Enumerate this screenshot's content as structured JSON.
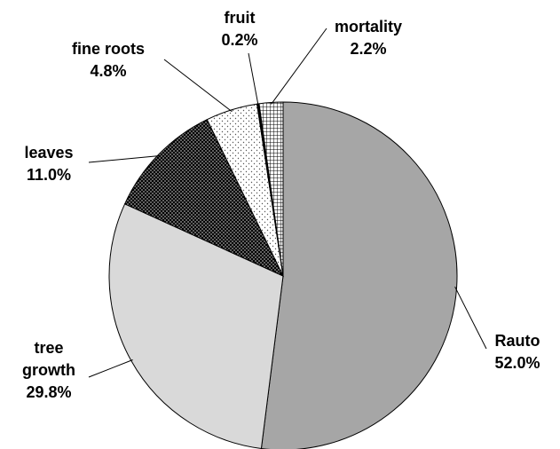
{
  "chart_data": {
    "type": "pie",
    "categories": [
      "Rauto",
      "tree growth",
      "leaves",
      "fine roots",
      "fruit",
      "mortality"
    ],
    "values": [
      52.0,
      29.8,
      11.0,
      4.8,
      0.2,
      2.2
    ],
    "value_labels": [
      "52.0%",
      "29.8%",
      "11.0%",
      "4.8%",
      "0.2%",
      "2.2%"
    ],
    "colors": [
      "#a6a6a6",
      "#d9d9d9",
      "#222222",
      "#ffffff",
      "#000000",
      "#ffffff"
    ],
    "patterns": [
      "solid",
      "solid",
      "crosshatch",
      "dots",
      "solid",
      "grid"
    ]
  }
}
